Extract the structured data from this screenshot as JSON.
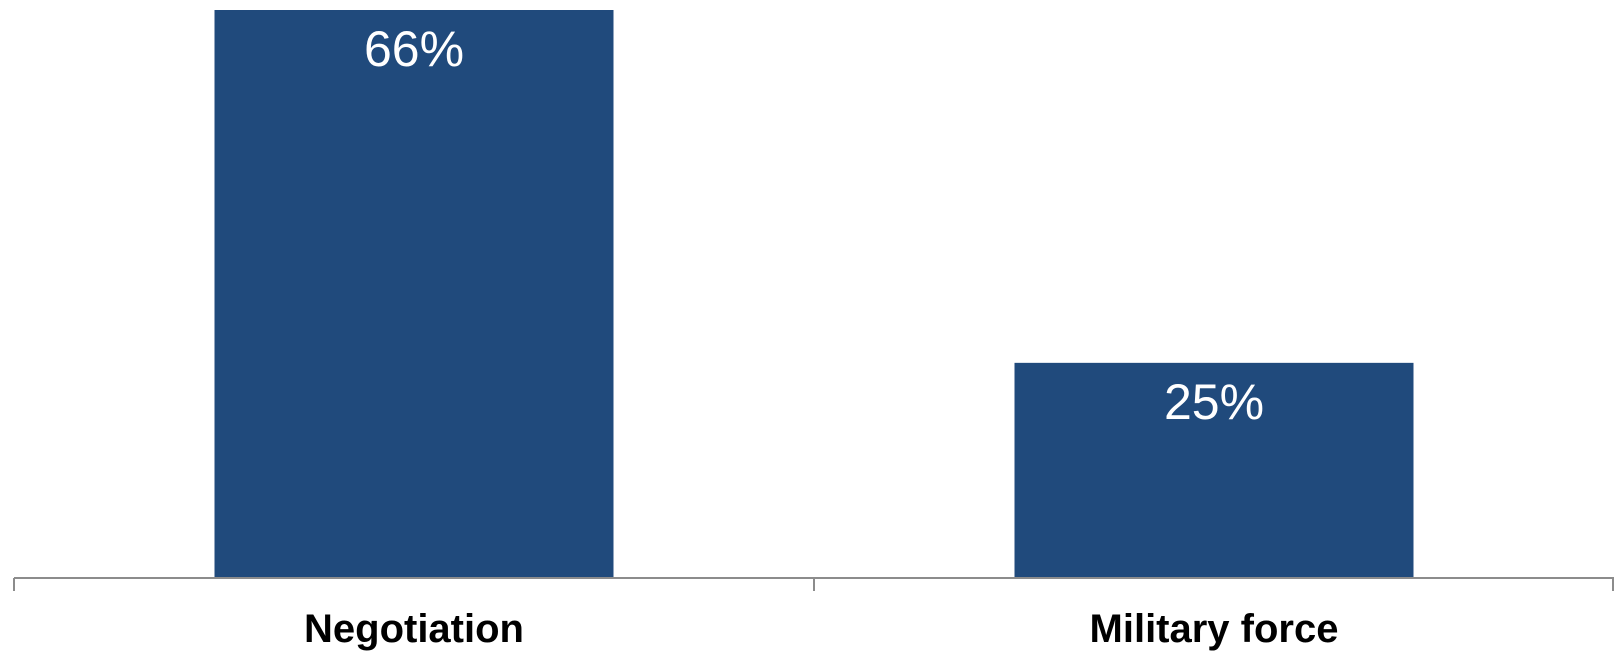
{
  "chart_data": {
    "type": "bar",
    "categories": [
      "Negotiation",
      "Military force"
    ],
    "values": [
      66,
      25
    ],
    "data_labels": [
      "66%",
      "25%"
    ],
    "ylim": [
      0,
      66
    ],
    "grid": false,
    "legend": "none",
    "colors": {
      "bar": "#204a7c",
      "value_label": "#ffffff",
      "category_label": "#000000",
      "axis": "#8c8c8c"
    }
  }
}
